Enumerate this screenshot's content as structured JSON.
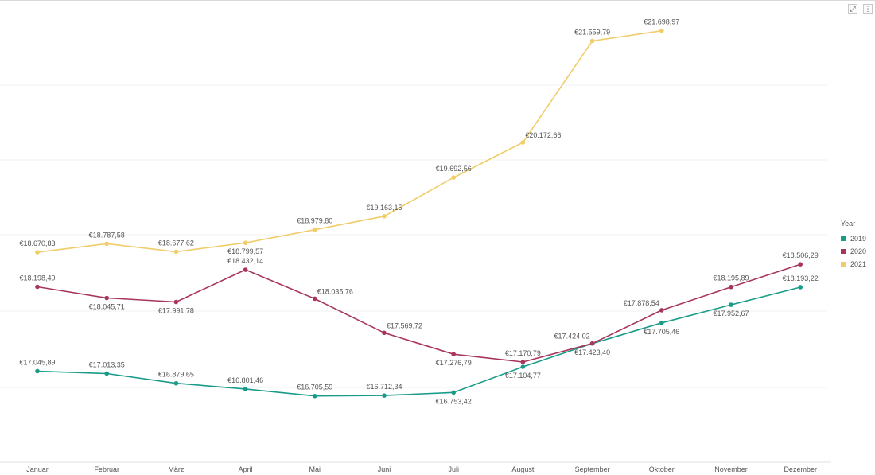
{
  "toolbar": {
    "expand_icon": "expand-icon",
    "more_icon": "more-options-icon",
    "expand_glyph": "⤢",
    "more_glyph": "⋮"
  },
  "legend": {
    "title": "Year"
  },
  "chart_data": {
    "type": "line",
    "title": "",
    "xlabel": "",
    "ylabel": "",
    "categories": [
      "Januar",
      "Februar",
      "März",
      "April",
      "Mai",
      "Juni",
      "Juli",
      "August",
      "September",
      "Oktober",
      "November",
      "Dezember"
    ],
    "ylim": [
      15800,
      22000
    ],
    "grid": true,
    "legend_position": "right",
    "series": [
      {
        "name": "2019",
        "color": "#1a9b8a",
        "values": [
          17045.89,
          17013.35,
          16879.65,
          16801.46,
          16705.59,
          16712.34,
          16753.42,
          17104.77,
          17423.4,
          17705.46,
          17952.67,
          18193.22
        ],
        "labels": [
          "€17.045,89",
          "€17.013,35",
          "€16.879,65",
          "€16.801,46",
          "€16.705,59",
          "€16.712,34",
          "€16.753,42",
          "€17.104,77",
          "€17.423,40",
          "€17.705,46",
          "€17.952,67",
          "€18.193,22"
        ],
        "label_pos": [
          "above",
          "above",
          "above",
          "above",
          "above",
          "above",
          "below",
          "below",
          "below",
          "below",
          "below",
          "above"
        ]
      },
      {
        "name": "2020",
        "color": "#a8365b",
        "values": [
          18198.49,
          18045.71,
          17991.78,
          18432.14,
          18035.76,
          17569.72,
          17276.79,
          17170.79,
          17424.02,
          17878.54,
          18195.89,
          18506.29
        ],
        "labels": [
          "€18.198,49",
          "€18.045,71",
          "€17.991,78",
          "€18.432,14",
          "€18.035,76",
          "€17.569,72",
          "€17.276,79",
          "€17.170,79",
          "€17.424,02",
          "€17.878,54",
          "€18.195,89",
          "€18.506,29"
        ],
        "label_pos": [
          "above",
          "below",
          "below",
          "above",
          "right",
          "right",
          "below",
          "above",
          "left",
          "left",
          "above",
          "above"
        ]
      },
      {
        "name": "2021",
        "color": "#f0cd6a",
        "values": [
          18670.83,
          18787.58,
          18677.62,
          18799.57,
          18979.8,
          19163.15,
          19692.56,
          20172.66,
          21559.79,
          21698.97,
          null,
          null
        ],
        "labels": [
          "€18.670,83",
          "€18.787,58",
          "€18.677,62",
          "€18.799,57",
          "€18.979,80",
          "€19.163,15",
          "€19.692,56",
          "€20.172,66",
          "€21.559,79",
          "€21.698,97",
          "",
          ""
        ],
        "label_pos": [
          "above",
          "above",
          "above",
          "below",
          "above",
          "above",
          "above",
          "right",
          "above",
          "above",
          "above",
          "above"
        ]
      }
    ]
  }
}
